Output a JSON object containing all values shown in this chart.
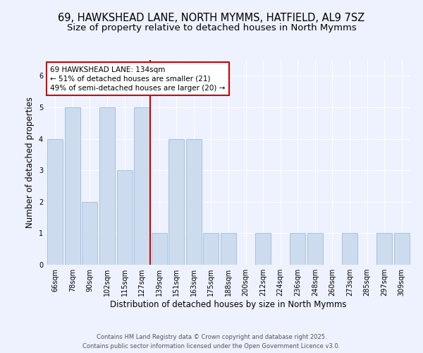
{
  "title_line1": "69, HAWKSHEAD LANE, NORTH MYMMS, HATFIELD, AL9 7SZ",
  "title_line2": "Size of property relative to detached houses in North Mymms",
  "xlabel": "Distribution of detached houses by size in North Mymms",
  "ylabel": "Number of detached properties",
  "categories": [
    "66sqm",
    "78sqm",
    "90sqm",
    "102sqm",
    "115sqm",
    "127sqm",
    "139sqm",
    "151sqm",
    "163sqm",
    "175sqm",
    "188sqm",
    "200sqm",
    "212sqm",
    "224sqm",
    "236sqm",
    "248sqm",
    "260sqm",
    "273sqm",
    "285sqm",
    "297sqm",
    "309sqm"
  ],
  "values": [
    4,
    5,
    2,
    5,
    3,
    5,
    1,
    4,
    4,
    1,
    1,
    0,
    1,
    0,
    1,
    1,
    0,
    1,
    0,
    1,
    1
  ],
  "bar_color": "#ccdcee",
  "bar_edge_color": "#9abcd8",
  "vline_x_index": 6,
  "vline_color": "#cc0000",
  "annotation_text": "69 HAWKSHEAD LANE: 134sqm\n← 51% of detached houses are smaller (21)\n49% of semi-detached houses are larger (20) →",
  "annotation_box_color": "white",
  "annotation_box_edge_color": "#cc0000",
  "ylim": [
    0,
    6.5
  ],
  "yticks": [
    0,
    1,
    2,
    3,
    4,
    5,
    6
  ],
  "background_color": "#eef2ff",
  "footer_text": "Contains HM Land Registry data © Crown copyright and database right 2025.\nContains public sector information licensed under the Open Government Licence v3.0.",
  "title_fontsize": 10.5,
  "subtitle_fontsize": 9.5,
  "axis_label_fontsize": 8.5,
  "tick_fontsize": 7,
  "annotation_fontsize": 7.5,
  "footer_fontsize": 6.0
}
